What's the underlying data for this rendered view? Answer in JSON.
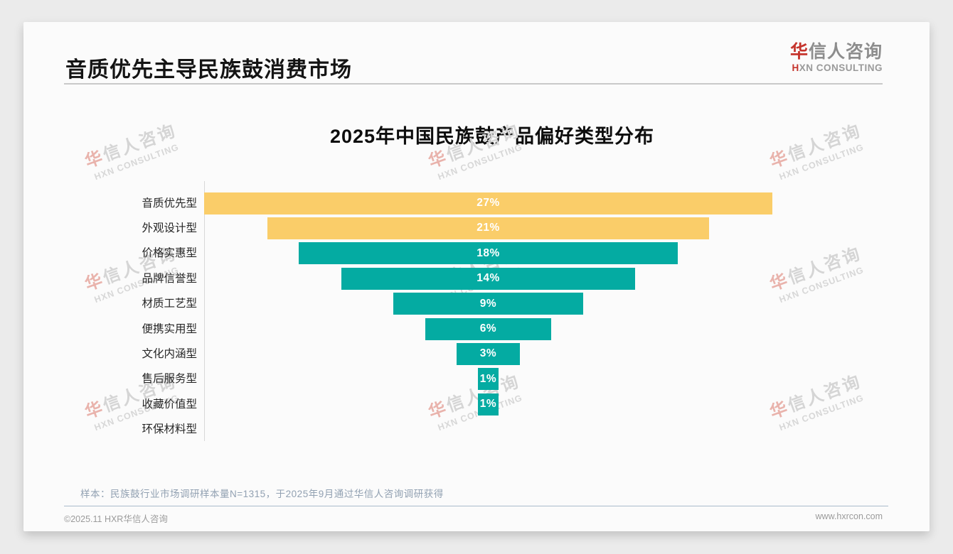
{
  "page": {
    "title": "音质优先主导民族鼓消费市场"
  },
  "logo": {
    "cn_first": "华",
    "cn_rest": "信人咨询",
    "en_first": "H",
    "en_rest": "XN CONSULTING"
  },
  "watermark": {
    "cn_first": "华",
    "cn_rest": "信人咨询",
    "en": "HXN CONSULTING"
  },
  "chart_data": {
    "type": "bar",
    "variant": "centered-funnel",
    "orientation": "horizontal",
    "title": "2025年中国民族鼓产品偏好类型分布",
    "categories": [
      "音质优先型",
      "外观设计型",
      "价格实惠型",
      "品牌信誉型",
      "材质工艺型",
      "便携实用型",
      "文化内涵型",
      "售后服务型",
      "收藏价值型",
      "环保材料型"
    ],
    "values": [
      27,
      21,
      18,
      14,
      9,
      6,
      3,
      1,
      1,
      0
    ],
    "value_labels": [
      "27%",
      "21%",
      "18%",
      "14%",
      "9%",
      "6%",
      "3%",
      "1%",
      "1%",
      ""
    ],
    "value_unit": "%",
    "xlim": [
      0,
      27
    ],
    "grid": false,
    "value_labels_inside": true,
    "bar_colors": [
      "#FACD69",
      "#FACD69",
      "#04ABA2",
      "#04ABA2",
      "#04ABA2",
      "#04ABA2",
      "#04ABA2",
      "#04ABA2",
      "#04ABA2",
      "#04ABA2"
    ],
    "colors": {
      "yellow": "#FACD69",
      "teal": "#04ABA2"
    }
  },
  "note": {
    "text": "样本：民族鼓行业市场调研样本量N=1315，于2025年9月通过华信人咨询调研获得"
  },
  "footer": {
    "copyright": "©2025.11 HXR华信人咨询",
    "website": "www.hxrcon.com"
  }
}
